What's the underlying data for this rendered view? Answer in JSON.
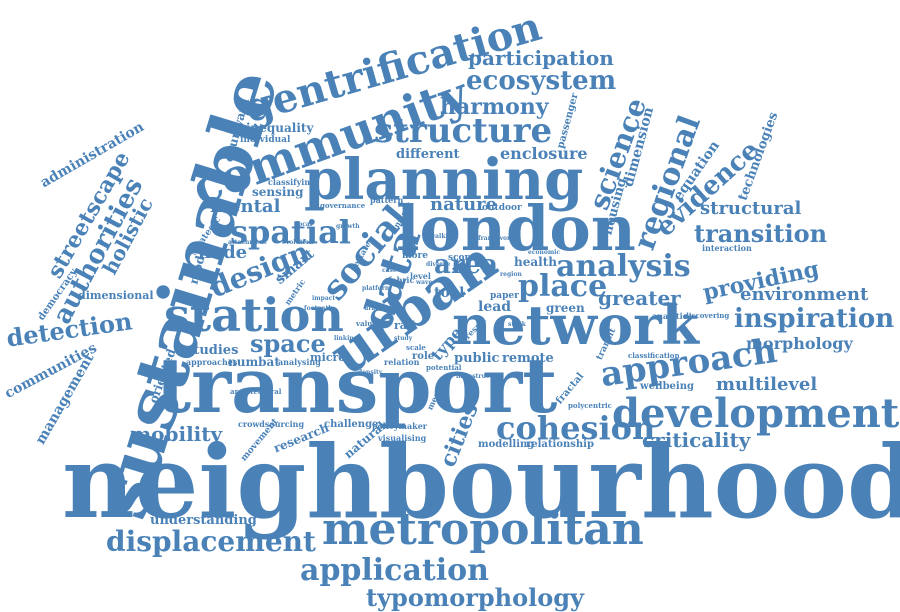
{
  "colors": {
    "word": "#4a82b8",
    "background": "#ffffff"
  },
  "words": [
    "neighbourhood",
    "transport",
    "sustainable",
    "network",
    "urban",
    "london",
    "planning",
    "community",
    "metropolitan",
    "gentrification",
    "development",
    "station",
    "structure",
    "approach",
    "displacement",
    "social",
    "data",
    "analysis",
    "spatial",
    "place",
    "cohesion",
    "application",
    "typomorphology",
    "regional",
    "science",
    "evidence",
    "ecosystem",
    "design",
    "space",
    "transition",
    "inspiration",
    "area",
    "participation",
    "harmony",
    "streetscape",
    "authorities",
    "holistic",
    "detection",
    "providing",
    "environment",
    "criticality",
    "structural",
    "mobility",
    "greater",
    "mental",
    "node",
    "morphology",
    "multilevel",
    "enclosure",
    "nature",
    "cities",
    "administration",
    "management",
    "communities",
    "democracy",
    "oriented",
    "courtyard",
    "inequality",
    "individual",
    "housing",
    "dimension",
    "equation",
    "technologies",
    "passenger",
    "different",
    "sensing",
    "classifying",
    "pattern",
    "outdoor",
    "insight",
    "governance",
    "strategic",
    "model",
    "smart",
    "metric",
    "estate",
    "fabric",
    "level",
    "type",
    "rail",
    "value",
    "role",
    "tool",
    "lead",
    "paper",
    "green",
    "health",
    "score",
    "more",
    "interaction",
    "remote",
    "public",
    "studies",
    "numbat",
    "micro",
    "analysing",
    "approaches",
    "architectural",
    "crowdsourcing",
    "movement",
    "research",
    "challenge",
    "natural",
    "policymaker",
    "visualising",
    "modelling",
    "relationship",
    "fractal",
    "polycentric",
    "wellbeing",
    "analytic",
    "discovering",
    "classification",
    "transit",
    "understanding",
    "dimensional",
    "relation",
    "potential",
    "measure",
    "result",
    "walking",
    "attachment",
    "evolution",
    "platform",
    "footpath",
    "diverse",
    "linking",
    "impact",
    "urbanism",
    "scale",
    "study",
    "wave",
    "case",
    "region",
    "stock",
    "economic",
    "local",
    "growth",
    "framework",
    "density",
    "infrastructure"
  ]
}
